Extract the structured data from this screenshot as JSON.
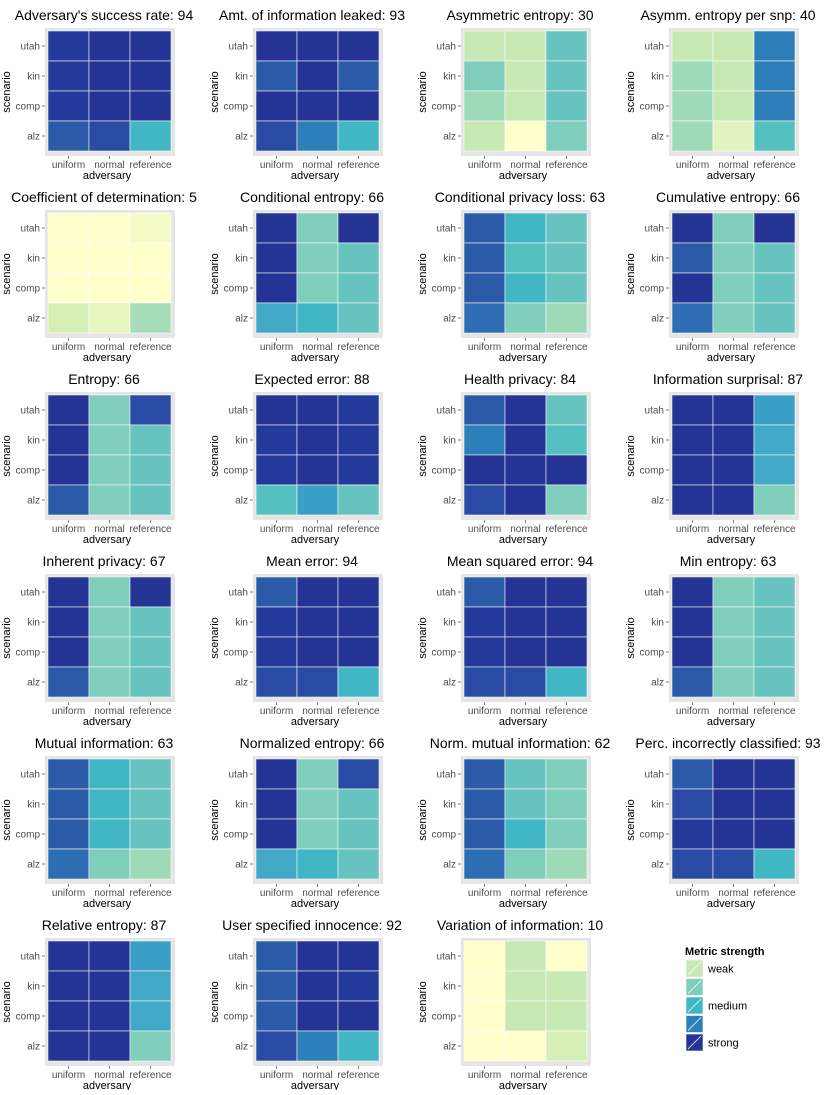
{
  "legend": {
    "title": "Metric strength",
    "labels": [
      "weak",
      "",
      "medium",
      "",
      "strong"
    ],
    "colors": [
      "#ffffcc",
      "#c7e9b4",
      "#7fcdbb",
      "#41b6c4",
      "#2c7fb8",
      "#253494"
    ]
  },
  "chart_data": [
    {
      "type": "heatmap",
      "title": "Adversary's success rate: 94",
      "xlabel": "adversary",
      "ylabel": "scenario",
      "x_categories": [
        "uniform",
        "normal",
        "reference"
      ],
      "y_categories": [
        "utah",
        "kin",
        "comp",
        "alz"
      ],
      "colors": [
        [
          "#243a9a",
          "#253494",
          "#253494"
        ],
        [
          "#243a9a",
          "#253494",
          "#253494"
        ],
        [
          "#243a9a",
          "#253494",
          "#253494"
        ],
        [
          "#2b5aa8",
          "#2a4ba3",
          "#41b6c4"
        ]
      ]
    },
    {
      "type": "heatmap",
      "title": "Amt. of information leaked: 93",
      "xlabel": "adversary",
      "ylabel": "scenario",
      "x_categories": [
        "uniform",
        "normal",
        "reference"
      ],
      "y_categories": [
        "utah",
        "kin",
        "comp",
        "alz"
      ],
      "colors": [
        [
          "#253494",
          "#253494",
          "#253494"
        ],
        [
          "#2b5aa8",
          "#253494",
          "#2b5aa8"
        ],
        [
          "#253494",
          "#253494",
          "#253494"
        ],
        [
          "#2a4ba3",
          "#2c7fb8",
          "#41b6c4"
        ]
      ]
    },
    {
      "type": "heatmap",
      "title": "Asymmetric entropy: 30",
      "xlabel": "adversary",
      "ylabel": "scenario",
      "x_categories": [
        "uniform",
        "normal",
        "reference"
      ],
      "y_categories": [
        "utah",
        "kin",
        "comp",
        "alz"
      ],
      "colors": [
        [
          "#c7e9b4",
          "#c7e9b4",
          "#67c3bf"
        ],
        [
          "#7fcdbb",
          "#c7e9b4",
          "#67c3bf"
        ],
        [
          "#9ed9b8",
          "#c7e9b4",
          "#67c3bf"
        ],
        [
          "#c7e9b4",
          "#ffffcc",
          "#7fcdbb"
        ]
      ]
    },
    {
      "type": "heatmap",
      "title": "Asymm. entropy per snp: 40",
      "xlabel": "adversary",
      "ylabel": "scenario",
      "x_categories": [
        "uniform",
        "normal",
        "reference"
      ],
      "y_categories": [
        "utah",
        "kin",
        "comp",
        "alz"
      ],
      "colors": [
        [
          "#c7e9b4",
          "#c7e9b4",
          "#2c7fb8"
        ],
        [
          "#9ed9b8",
          "#c7e9b4",
          "#2c7fb8"
        ],
        [
          "#9ed9b8",
          "#c7e9b4",
          "#2c7fb8"
        ],
        [
          "#9ed9b8",
          "#e4f4c0",
          "#55c0c0"
        ]
      ]
    },
    {
      "type": "heatmap",
      "title": "Coefficient of determination: 5",
      "xlabel": "adversary",
      "ylabel": "scenario",
      "x_categories": [
        "uniform",
        "normal",
        "reference"
      ],
      "y_categories": [
        "utah",
        "kin",
        "comp",
        "alz"
      ],
      "colors": [
        [
          "#ffffcc",
          "#ffffcc",
          "#f3fac6"
        ],
        [
          "#ffffcc",
          "#ffffcc",
          "#ffffcc"
        ],
        [
          "#ffffcc",
          "#ffffcc",
          "#ffffcc"
        ],
        [
          "#d6efb6",
          "#e8f6c0",
          "#a6dcb8"
        ]
      ]
    },
    {
      "type": "heatmap",
      "title": "Conditional entropy: 66",
      "xlabel": "adversary",
      "ylabel": "scenario",
      "x_categories": [
        "uniform",
        "normal",
        "reference"
      ],
      "y_categories": [
        "utah",
        "kin",
        "comp",
        "alz"
      ],
      "colors": [
        [
          "#253494",
          "#7fcdbb",
          "#253494"
        ],
        [
          "#253494",
          "#7fcdbb",
          "#67c3bf"
        ],
        [
          "#253494",
          "#7fcdbb",
          "#67c3bf"
        ],
        [
          "#41a8c8",
          "#41b6c4",
          "#67c3bf"
        ]
      ]
    },
    {
      "type": "heatmap",
      "title": "Conditional privacy loss: 63",
      "xlabel": "adversary",
      "ylabel": "scenario",
      "x_categories": [
        "uniform",
        "normal",
        "reference"
      ],
      "y_categories": [
        "utah",
        "kin",
        "comp",
        "alz"
      ],
      "colors": [
        [
          "#2b5aa8",
          "#41b6c4",
          "#67c3bf"
        ],
        [
          "#2b5aa8",
          "#55c0c0",
          "#67c3bf"
        ],
        [
          "#2b5aa8",
          "#41b6c4",
          "#67c3bf"
        ],
        [
          "#2c6db4",
          "#7fcdbb",
          "#9ed9b8"
        ]
      ]
    },
    {
      "type": "heatmap",
      "title": "Cumulative entropy: 66",
      "xlabel": "adversary",
      "ylabel": "scenario",
      "x_categories": [
        "uniform",
        "normal",
        "reference"
      ],
      "y_categories": [
        "utah",
        "kin",
        "comp",
        "alz"
      ],
      "colors": [
        [
          "#253494",
          "#7fcdbb",
          "#253494"
        ],
        [
          "#2b5aa8",
          "#7fcdbb",
          "#67c3bf"
        ],
        [
          "#253494",
          "#7fcdbb",
          "#67c3bf"
        ],
        [
          "#2c6db4",
          "#7fcdbb",
          "#67c3bf"
        ]
      ]
    },
    {
      "type": "heatmap",
      "title": "Entropy: 66",
      "xlabel": "adversary",
      "ylabel": "scenario",
      "x_categories": [
        "uniform",
        "normal",
        "reference"
      ],
      "y_categories": [
        "utah",
        "kin",
        "comp",
        "alz"
      ],
      "colors": [
        [
          "#253494",
          "#7fcdbb",
          "#2a4ba3"
        ],
        [
          "#253494",
          "#7fcdbb",
          "#67c3bf"
        ],
        [
          "#253494",
          "#7fcdbb",
          "#67c3bf"
        ],
        [
          "#2b5aa8",
          "#7fcdbb",
          "#67c3bf"
        ]
      ]
    },
    {
      "type": "heatmap",
      "title": "Expected error: 88",
      "xlabel": "adversary",
      "ylabel": "scenario",
      "x_categories": [
        "uniform",
        "normal",
        "reference"
      ],
      "y_categories": [
        "utah",
        "kin",
        "comp",
        "alz"
      ],
      "colors": [
        [
          "#253494",
          "#253494",
          "#243a9a"
        ],
        [
          "#243a9a",
          "#253494",
          "#243a9a"
        ],
        [
          "#243a9a",
          "#253494",
          "#243a9a"
        ],
        [
          "#55c0c0",
          "#3a9fc6",
          "#67c3bf"
        ]
      ]
    },
    {
      "type": "heatmap",
      "title": "Health privacy: 84",
      "xlabel": "adversary",
      "ylabel": "scenario",
      "x_categories": [
        "uniform",
        "normal",
        "reference"
      ],
      "y_categories": [
        "utah",
        "kin",
        "comp",
        "alz"
      ],
      "colors": [
        [
          "#2b5aa8",
          "#253494",
          "#67c3bf"
        ],
        [
          "#2c7fb8",
          "#253494",
          "#55c0c0"
        ],
        [
          "#253494",
          "#253494",
          "#253494"
        ],
        [
          "#2a4ba3",
          "#253494",
          "#7fcdbb"
        ]
      ]
    },
    {
      "type": "heatmap",
      "title": "Information surprisal: 87",
      "xlabel": "adversary",
      "ylabel": "scenario",
      "x_categories": [
        "uniform",
        "normal",
        "reference"
      ],
      "y_categories": [
        "utah",
        "kin",
        "comp",
        "alz"
      ],
      "colors": [
        [
          "#253494",
          "#253494",
          "#3a9fc6"
        ],
        [
          "#253494",
          "#253494",
          "#41a8c8"
        ],
        [
          "#253494",
          "#253494",
          "#41a8c8"
        ],
        [
          "#253494",
          "#253494",
          "#7fcdbb"
        ]
      ]
    },
    {
      "type": "heatmap",
      "title": "Inherent privacy: 67",
      "xlabel": "adversary",
      "ylabel": "scenario",
      "x_categories": [
        "uniform",
        "normal",
        "reference"
      ],
      "y_categories": [
        "utah",
        "kin",
        "comp",
        "alz"
      ],
      "colors": [
        [
          "#253494",
          "#7fcdbb",
          "#253494"
        ],
        [
          "#253494",
          "#7fcdbb",
          "#67c3bf"
        ],
        [
          "#253494",
          "#7fcdbb",
          "#67c3bf"
        ],
        [
          "#2b5aa8",
          "#7fcdbb",
          "#67c3bf"
        ]
      ]
    },
    {
      "type": "heatmap",
      "title": "Mean error: 94",
      "xlabel": "adversary",
      "ylabel": "scenario",
      "x_categories": [
        "uniform",
        "normal",
        "reference"
      ],
      "y_categories": [
        "utah",
        "kin",
        "comp",
        "alz"
      ],
      "colors": [
        [
          "#2b5aa8",
          "#253494",
          "#253494"
        ],
        [
          "#243a9a",
          "#253494",
          "#253494"
        ],
        [
          "#243a9a",
          "#253494",
          "#253494"
        ],
        [
          "#2a4ba3",
          "#2a4ba3",
          "#41b6c4"
        ]
      ]
    },
    {
      "type": "heatmap",
      "title": "Mean squared error: 94",
      "xlabel": "adversary",
      "ylabel": "scenario",
      "x_categories": [
        "uniform",
        "normal",
        "reference"
      ],
      "y_categories": [
        "utah",
        "kin",
        "comp",
        "alz"
      ],
      "colors": [
        [
          "#2b5aa8",
          "#253494",
          "#253494"
        ],
        [
          "#243a9a",
          "#253494",
          "#253494"
        ],
        [
          "#243a9a",
          "#253494",
          "#253494"
        ],
        [
          "#2a4ba3",
          "#2a4ba3",
          "#41b6c4"
        ]
      ]
    },
    {
      "type": "heatmap",
      "title": "Min entropy: 63",
      "xlabel": "adversary",
      "ylabel": "scenario",
      "x_categories": [
        "uniform",
        "normal",
        "reference"
      ],
      "y_categories": [
        "utah",
        "kin",
        "comp",
        "alz"
      ],
      "colors": [
        [
          "#253494",
          "#7fcdbb",
          "#67c3bf"
        ],
        [
          "#253494",
          "#7fcdbb",
          "#67c3bf"
        ],
        [
          "#253494",
          "#7fcdbb",
          "#67c3bf"
        ],
        [
          "#2b5aa8",
          "#7fcdbb",
          "#67c3bf"
        ]
      ]
    },
    {
      "type": "heatmap",
      "title": "Mutual information: 63",
      "xlabel": "adversary",
      "ylabel": "scenario",
      "x_categories": [
        "uniform",
        "normal",
        "reference"
      ],
      "y_categories": [
        "utah",
        "kin",
        "comp",
        "alz"
      ],
      "colors": [
        [
          "#2b5aa8",
          "#41b6c4",
          "#67c3bf"
        ],
        [
          "#2b5aa8",
          "#41b6c4",
          "#67c3bf"
        ],
        [
          "#2b5aa8",
          "#41b6c4",
          "#67c3bf"
        ],
        [
          "#2c6db4",
          "#7fcdbb",
          "#9ed9b8"
        ]
      ]
    },
    {
      "type": "heatmap",
      "title": "Normalized entropy: 66",
      "xlabel": "adversary",
      "ylabel": "scenario",
      "x_categories": [
        "uniform",
        "normal",
        "reference"
      ],
      "y_categories": [
        "utah",
        "kin",
        "comp",
        "alz"
      ],
      "colors": [
        [
          "#253494",
          "#7fcdbb",
          "#2a4ba3"
        ],
        [
          "#253494",
          "#7fcdbb",
          "#67c3bf"
        ],
        [
          "#253494",
          "#7fcdbb",
          "#67c3bf"
        ],
        [
          "#41a8c8",
          "#41b6c4",
          "#67c3bf"
        ]
      ]
    },
    {
      "type": "heatmap",
      "title": "Norm. mutual information: 62",
      "xlabel": "adversary",
      "ylabel": "scenario",
      "x_categories": [
        "uniform",
        "normal",
        "reference"
      ],
      "y_categories": [
        "utah",
        "kin",
        "comp",
        "alz"
      ],
      "colors": [
        [
          "#2b5aa8",
          "#67c3bf",
          "#7fcdbb"
        ],
        [
          "#2b5aa8",
          "#67c3bf",
          "#7fcdbb"
        ],
        [
          "#2b5aa8",
          "#41b6c4",
          "#7fcdbb"
        ],
        [
          "#2c6db4",
          "#7fcdbb",
          "#9ed9b8"
        ]
      ]
    },
    {
      "type": "heatmap",
      "title": "Perc. incorrectly classified: 93",
      "xlabel": "adversary",
      "ylabel": "scenario",
      "x_categories": [
        "uniform",
        "normal",
        "reference"
      ],
      "y_categories": [
        "utah",
        "kin",
        "comp",
        "alz"
      ],
      "colors": [
        [
          "#2b5aa8",
          "#253494",
          "#253494"
        ],
        [
          "#2a4ba3",
          "#253494",
          "#253494"
        ],
        [
          "#243a9a",
          "#253494",
          "#253494"
        ],
        [
          "#2a4ba3",
          "#2a4ba3",
          "#41b6c4"
        ]
      ]
    },
    {
      "type": "heatmap",
      "title": "Relative entropy: 87",
      "xlabel": "adversary",
      "ylabel": "scenario",
      "x_categories": [
        "uniform",
        "normal",
        "reference"
      ],
      "y_categories": [
        "utah",
        "kin",
        "comp",
        "alz"
      ],
      "colors": [
        [
          "#253494",
          "#253494",
          "#3a9fc6"
        ],
        [
          "#253494",
          "#253494",
          "#41a8c8"
        ],
        [
          "#253494",
          "#253494",
          "#41a8c8"
        ],
        [
          "#253494",
          "#253494",
          "#7fcdbb"
        ]
      ]
    },
    {
      "type": "heatmap",
      "title": "User specified innocence: 92",
      "xlabel": "adversary",
      "ylabel": "scenario",
      "x_categories": [
        "uniform",
        "normal",
        "reference"
      ],
      "y_categories": [
        "utah",
        "kin",
        "comp",
        "alz"
      ],
      "colors": [
        [
          "#2b5aa8",
          "#253494",
          "#253494"
        ],
        [
          "#2b5aa8",
          "#253494",
          "#243a9a"
        ],
        [
          "#2b5aa8",
          "#253494",
          "#253494"
        ],
        [
          "#2a4ba3",
          "#2c7fb8",
          "#41b6c4"
        ]
      ]
    },
    {
      "type": "heatmap",
      "title": "Variation of information: 10",
      "xlabel": "adversary",
      "ylabel": "scenario",
      "x_categories": [
        "uniform",
        "normal",
        "reference"
      ],
      "y_categories": [
        "utah",
        "kin",
        "comp",
        "alz"
      ],
      "colors": [
        [
          "#ffffcc",
          "#c7e9b4",
          "#ffffcc"
        ],
        [
          "#ffffcc",
          "#c7e9b4",
          "#c7e9b4"
        ],
        [
          "#ffffcc",
          "#c7e9b4",
          "#c7e9b4"
        ],
        [
          "#ffffcc",
          "#ffffcc",
          "#d6efb6"
        ]
      ]
    }
  ]
}
